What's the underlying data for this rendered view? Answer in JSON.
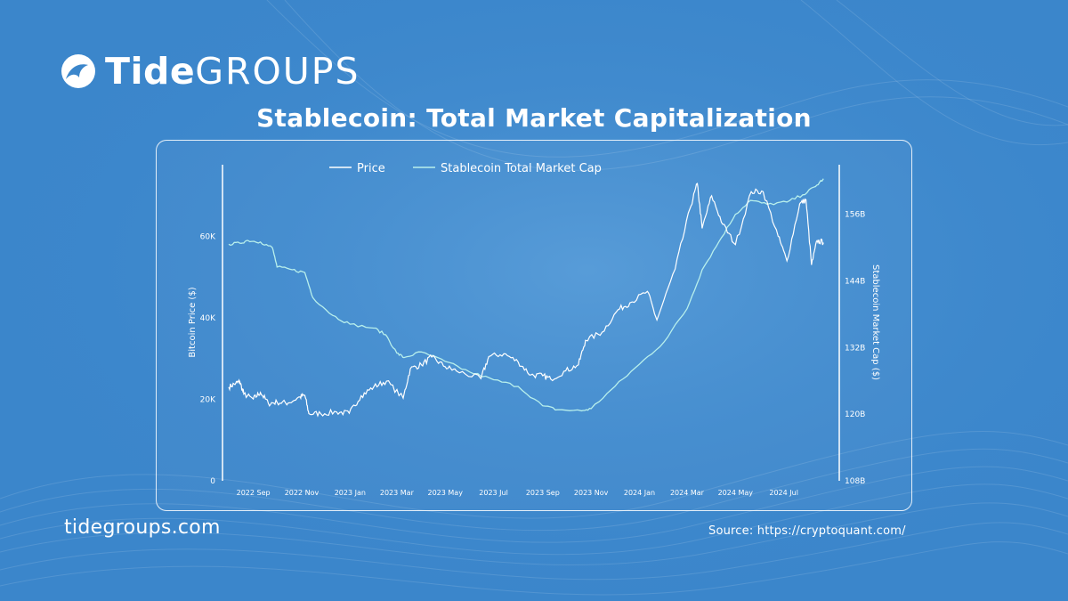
{
  "brand": {
    "name_bold": "Tide",
    "name_light": "GROUPS",
    "website": "tidegroups.com"
  },
  "source": "Source: https://cryptoquant.com/",
  "colors": {
    "background": "#3b86cb",
    "price_line": "#ffffff",
    "stablecoin_line": "#b8f0ec"
  },
  "chart_data": {
    "type": "line",
    "title": "Stablecoin: Total Market Capitalization",
    "x_start": "2022-08-01",
    "x_end": "2024-08-31",
    "x_ticks": [
      {
        "date": "2022-09-01",
        "label": "2022 Sep"
      },
      {
        "date": "2022-11-01",
        "label": "2022 Nov"
      },
      {
        "date": "2023-01-01",
        "label": "2023 Jan"
      },
      {
        "date": "2023-03-01",
        "label": "2023 Mar"
      },
      {
        "date": "2023-05-01",
        "label": "2023 May"
      },
      {
        "date": "2023-07-01",
        "label": "2023 Jul"
      },
      {
        "date": "2023-09-01",
        "label": "2023 Sep"
      },
      {
        "date": "2023-11-01",
        "label": "2023 Nov"
      },
      {
        "date": "2024-01-01",
        "label": "2024 Jan"
      },
      {
        "date": "2024-03-01",
        "label": "2024 Mar"
      },
      {
        "date": "2024-05-01",
        "label": "2024 May"
      },
      {
        "date": "2024-07-01",
        "label": "2024 Jul"
      }
    ],
    "left_axis": {
      "label": "Bitcoin Price ($)",
      "range": [
        0,
        75000
      ],
      "ticks": [
        {
          "value": 0,
          "label": "0"
        },
        {
          "value": 20000,
          "label": "20K"
        },
        {
          "value": 40000,
          "label": "40K"
        },
        {
          "value": 60000,
          "label": "60K"
        }
      ]
    },
    "right_axis": {
      "label": "Stablecoin Market Cap ($)",
      "range": [
        108,
        163
      ],
      "ticks": [
        {
          "value": 108,
          "label": "108B"
        },
        {
          "value": 120,
          "label": "120B"
        },
        {
          "value": 132,
          "label": "132B"
        },
        {
          "value": 144,
          "label": "144B"
        },
        {
          "value": 156,
          "label": "156B"
        }
      ]
    },
    "legend": [
      "Price",
      "Stablecoin Total Market Cap"
    ],
    "series": [
      {
        "name": "Price",
        "axis": "left",
        "unit": "USD",
        "points": [
          [
            "2022-08-01",
            23000
          ],
          [
            "2022-08-10",
            24000
          ],
          [
            "2022-08-15",
            24300
          ],
          [
            "2022-08-20",
            21300
          ],
          [
            "2022-09-01",
            20100
          ],
          [
            "2022-09-10",
            21700
          ],
          [
            "2022-09-20",
            19000
          ],
          [
            "2022-10-01",
            19300
          ],
          [
            "2022-10-15",
            19100
          ],
          [
            "2022-10-30",
            20600
          ],
          [
            "2022-11-05",
            21000
          ],
          [
            "2022-11-10",
            16500
          ],
          [
            "2022-11-25",
            16500
          ],
          [
            "2022-12-15",
            16900
          ],
          [
            "2022-12-31",
            16600
          ],
          [
            "2023-01-15",
            20900
          ],
          [
            "2023-01-31",
            23100
          ],
          [
            "2023-02-16",
            24500
          ],
          [
            "2023-03-09",
            20300
          ],
          [
            "2023-03-18",
            27500
          ],
          [
            "2023-04-01",
            28500
          ],
          [
            "2023-04-14",
            30400
          ],
          [
            "2023-05-01",
            28000
          ],
          [
            "2023-05-15",
            27000
          ],
          [
            "2023-06-15",
            25100
          ],
          [
            "2023-06-25",
            30500
          ],
          [
            "2023-07-14",
            31200
          ],
          [
            "2023-08-01",
            29200
          ],
          [
            "2023-08-17",
            26000
          ],
          [
            "2023-09-01",
            25800
          ],
          [
            "2023-09-11",
            25000
          ],
          [
            "2023-09-30",
            27000
          ],
          [
            "2023-10-16",
            28500
          ],
          [
            "2023-10-25",
            34500
          ],
          [
            "2023-11-15",
            36500
          ],
          [
            "2023-12-05",
            42000
          ],
          [
            "2023-12-20",
            43700
          ],
          [
            "2024-01-11",
            46500
          ],
          [
            "2024-01-23",
            39500
          ],
          [
            "2024-02-15",
            52000
          ],
          [
            "2024-03-05",
            67000
          ],
          [
            "2024-03-14",
            73000
          ],
          [
            "2024-03-20",
            62000
          ],
          [
            "2024-04-01",
            70000
          ],
          [
            "2024-04-15",
            63000
          ],
          [
            "2024-05-01",
            58000
          ],
          [
            "2024-05-21",
            71000
          ],
          [
            "2024-06-05",
            71000
          ],
          [
            "2024-06-24",
            60000
          ],
          [
            "2024-07-05",
            54000
          ],
          [
            "2024-07-21",
            68000
          ],
          [
            "2024-07-29",
            69000
          ],
          [
            "2024-08-05",
            53000
          ],
          [
            "2024-08-12",
            59000
          ],
          [
            "2024-08-20",
            58500
          ]
        ]
      },
      {
        "name": "Stablecoin Total Market Cap",
        "axis": "right",
        "unit": "B USD",
        "points": [
          [
            "2022-08-01",
            150.6
          ],
          [
            "2022-08-15",
            150.8
          ],
          [
            "2022-08-25",
            151.3
          ],
          [
            "2022-09-10",
            151.0
          ],
          [
            "2022-09-25",
            150.0
          ],
          [
            "2022-10-01",
            146.5
          ],
          [
            "2022-10-20",
            146.0
          ],
          [
            "2022-11-05",
            145.5
          ],
          [
            "2022-11-15",
            141.0
          ],
          [
            "2022-12-10",
            137.8
          ],
          [
            "2023-01-01",
            136.2
          ],
          [
            "2023-01-31",
            135.5
          ],
          [
            "2023-02-15",
            134.3
          ],
          [
            "2023-03-01",
            131.0
          ],
          [
            "2023-03-10",
            130.2
          ],
          [
            "2023-04-01",
            131.2
          ],
          [
            "2023-05-01",
            129.5
          ],
          [
            "2023-06-01",
            127.6
          ],
          [
            "2023-07-01",
            126.2
          ],
          [
            "2023-08-01",
            125.0
          ],
          [
            "2023-09-01",
            121.5
          ],
          [
            "2023-09-20",
            120.8
          ],
          [
            "2023-10-20",
            120.6
          ],
          [
            "2023-11-01",
            121.0
          ],
          [
            "2023-12-01",
            125.0
          ],
          [
            "2024-01-01",
            129.0
          ],
          [
            "2024-02-01",
            133.0
          ],
          [
            "2024-03-01",
            139.0
          ],
          [
            "2024-03-20",
            146.0
          ],
          [
            "2024-04-10",
            151.0
          ],
          [
            "2024-05-01",
            156.0
          ],
          [
            "2024-05-20",
            158.5
          ],
          [
            "2024-06-10",
            157.8
          ],
          [
            "2024-07-05",
            158.2
          ],
          [
            "2024-07-25",
            159.5
          ],
          [
            "2024-08-10",
            161.0
          ],
          [
            "2024-08-20",
            162.4
          ]
        ]
      }
    ]
  }
}
